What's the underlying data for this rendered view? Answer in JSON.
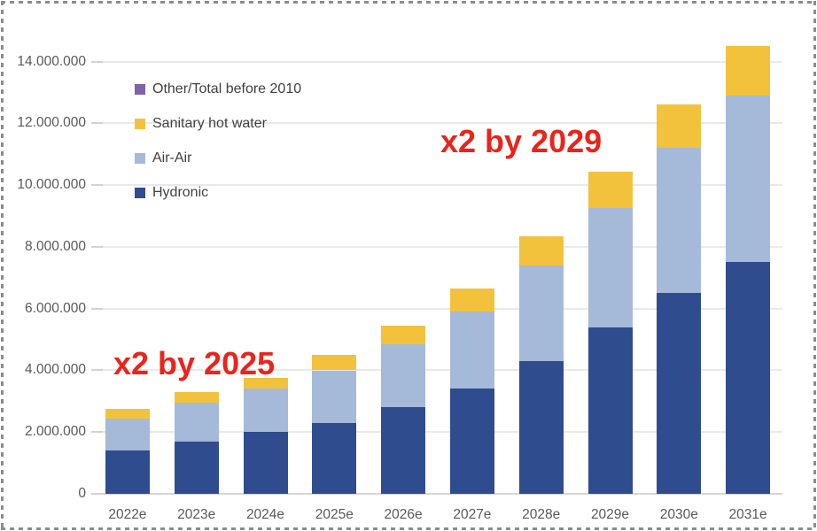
{
  "chart_data": {
    "type": "bar",
    "stacked": true,
    "title": "",
    "xlabel": "",
    "ylabel": "",
    "grid": true,
    "legend_position": "upper-left-inside",
    "categories": [
      "2022e",
      "2023e",
      "2024e",
      "2025e",
      "2026e",
      "2027e",
      "2028e",
      "2029e",
      "2030e",
      "2031e"
    ],
    "series": [
      {
        "name": "Hydronic",
        "color": "#2F4C8E",
        "values": [
          1400000,
          1700000,
          2000000,
          2300000,
          2800000,
          3400000,
          4300000,
          5400000,
          6500000,
          7500000
        ]
      },
      {
        "name": "Air-Air",
        "color": "#A4BAD8",
        "values": [
          1050000,
          1250000,
          1400000,
          1700000,
          2050000,
          2500000,
          3100000,
          3850000,
          4700000,
          5400000
        ]
      },
      {
        "name": "Sanitary hot water",
        "color": "#F3C23C",
        "values": [
          300000,
          350000,
          350000,
          500000,
          600000,
          750000,
          950000,
          1200000,
          1400000,
          1600000
        ]
      },
      {
        "name": "Other/Total before 2010",
        "color": "#7E63A5",
        "values": [
          0,
          0,
          0,
          0,
          0,
          0,
          0,
          0,
          0,
          0
        ]
      }
    ],
    "totals": [
      2750000,
      3300000,
      3750000,
      4500000,
      5450000,
      6650000,
      8350000,
      10450000,
      12600000,
      14500000
    ],
    "legend_order": [
      "Other/Total before 2010",
      "Sanitary hot water",
      "Air-Air",
      "Hydronic"
    ],
    "y_ticks": [
      "0",
      "2.000.000",
      "4.000.000",
      "6.000.000",
      "8.000.000",
      "10.000.000",
      "12.000.000",
      "14.000.000"
    ],
    "ylim": [
      0,
      14000000
    ],
    "y_tick_step": 2000000
  },
  "annotations": [
    {
      "text": "x2 by 2025",
      "color": "#E8251C"
    },
    {
      "text": "x2 by 2029",
      "color": "#E8251C"
    }
  ],
  "colors": {
    "axis_text": "#595959",
    "legend_text": "#404040",
    "gridline": "#E9E9E9",
    "border_dash": "#8B8B8B",
    "background": "#FFFFFF"
  }
}
